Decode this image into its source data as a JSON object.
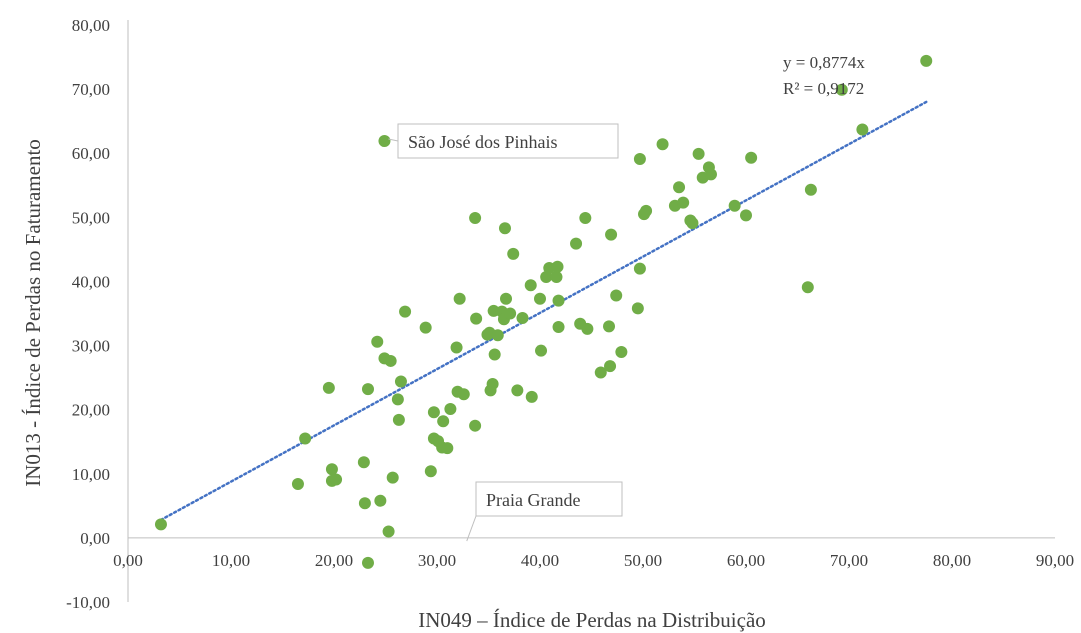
{
  "chart_data": {
    "type": "scatter",
    "title": "",
    "xlabel": "IN049 – Índice de Perdas na Distribuição",
    "ylabel": "IN013 - Índice de Perdas no Faturamento",
    "xlim": [
      0,
      90
    ],
    "ylim": [
      -10,
      80
    ],
    "x_ticks": [
      "0,00",
      "10,00",
      "20,00",
      "30,00",
      "40,00",
      "50,00",
      "60,00",
      "70,00",
      "80,00",
      "90,00"
    ],
    "y_ticks": [
      "-10,00",
      "0,00",
      "10,00",
      "20,00",
      "30,00",
      "40,00",
      "50,00",
      "60,00",
      "70,00",
      "80,00"
    ],
    "grid": false,
    "marker_color": "#70AD47",
    "trendline_color": "#4472C4",
    "trendline": {
      "slope": 0.8774,
      "x_range": [
        3.2,
        77.5
      ],
      "equation": "y = 0,8774x",
      "r2": "R² = 0,9172"
    },
    "annotations": [
      {
        "label": "São José dos Pinhais",
        "x": 24.9,
        "y": 61.9
      },
      {
        "label": "Praia Grande",
        "x": 32.5,
        "y": -0.8
      }
    ],
    "points": [
      [
        3.2,
        2.1
      ],
      [
        16.5,
        8.4
      ],
      [
        17.2,
        15.5
      ],
      [
        19.5,
        23.4
      ],
      [
        19.8,
        10.7
      ],
      [
        19.8,
        8.9
      ],
      [
        20.2,
        9.1
      ],
      [
        22.9,
        11.8
      ],
      [
        23.0,
        5.4
      ],
      [
        23.3,
        23.2
      ],
      [
        23.3,
        -3.9
      ],
      [
        24.2,
        30.6
      ],
      [
        24.5,
        5.8
      ],
      [
        24.9,
        61.9
      ],
      [
        24.9,
        28.0
      ],
      [
        25.3,
        1.0
      ],
      [
        25.5,
        27.6
      ],
      [
        25.7,
        9.4
      ],
      [
        26.2,
        21.6
      ],
      [
        26.3,
        18.4
      ],
      [
        26.5,
        24.4
      ],
      [
        26.9,
        35.3
      ],
      [
        28.9,
        32.8
      ],
      [
        29.4,
        10.4
      ],
      [
        29.7,
        19.6
      ],
      [
        29.7,
        15.5
      ],
      [
        30.1,
        15.1
      ],
      [
        30.5,
        14.1
      ],
      [
        30.6,
        18.2
      ],
      [
        31.0,
        14.0
      ],
      [
        31.3,
        20.1
      ],
      [
        31.9,
        29.7
      ],
      [
        32.0,
        22.8
      ],
      [
        32.2,
        37.3
      ],
      [
        32.6,
        22.4
      ],
      [
        33.7,
        17.5
      ],
      [
        33.7,
        49.9
      ],
      [
        33.8,
        34.2
      ],
      [
        34.9,
        31.7
      ],
      [
        35.1,
        32.0
      ],
      [
        35.2,
        23.0
      ],
      [
        35.4,
        24.0
      ],
      [
        35.5,
        35.4
      ],
      [
        35.6,
        28.6
      ],
      [
        35.9,
        31.6
      ],
      [
        36.3,
        35.3
      ],
      [
        36.5,
        34.1
      ],
      [
        36.6,
        48.3
      ],
      [
        36.7,
        37.3
      ],
      [
        37.1,
        35.0
      ],
      [
        37.4,
        44.3
      ],
      [
        37.8,
        23.0
      ],
      [
        38.3,
        34.3
      ],
      [
        39.1,
        39.4
      ],
      [
        39.2,
        22.0
      ],
      [
        40.0,
        37.3
      ],
      [
        40.1,
        29.2
      ],
      [
        40.6,
        40.7
      ],
      [
        40.9,
        42.1
      ],
      [
        41.6,
        40.7
      ],
      [
        41.7,
        42.3
      ],
      [
        41.8,
        32.9
      ],
      [
        41.8,
        37.0
      ],
      [
        43.5,
        45.9
      ],
      [
        43.9,
        33.4
      ],
      [
        44.4,
        49.9
      ],
      [
        44.6,
        32.6
      ],
      [
        45.9,
        25.8
      ],
      [
        46.7,
        33.0
      ],
      [
        46.8,
        26.8
      ],
      [
        46.9,
        47.3
      ],
      [
        47.4,
        37.8
      ],
      [
        47.9,
        29.0
      ],
      [
        49.5,
        35.8
      ],
      [
        49.7,
        59.1
      ],
      [
        49.7,
        42.0
      ],
      [
        50.1,
        50.5
      ],
      [
        50.3,
        51.0
      ],
      [
        51.9,
        61.4
      ],
      [
        53.1,
        51.8
      ],
      [
        53.5,
        54.7
      ],
      [
        53.9,
        52.3
      ],
      [
        54.6,
        49.5
      ],
      [
        54.8,
        49.1
      ],
      [
        55.4,
        59.9
      ],
      [
        55.8,
        56.2
      ],
      [
        56.4,
        57.8
      ],
      [
        56.6,
        56.7
      ],
      [
        58.9,
        51.8
      ],
      [
        60.0,
        50.3
      ],
      [
        60.5,
        59.3
      ],
      [
        66.0,
        39.1
      ],
      [
        66.3,
        54.3
      ],
      [
        69.3,
        69.9
      ],
      [
        71.3,
        63.7
      ],
      [
        77.5,
        74.4
      ]
    ]
  }
}
